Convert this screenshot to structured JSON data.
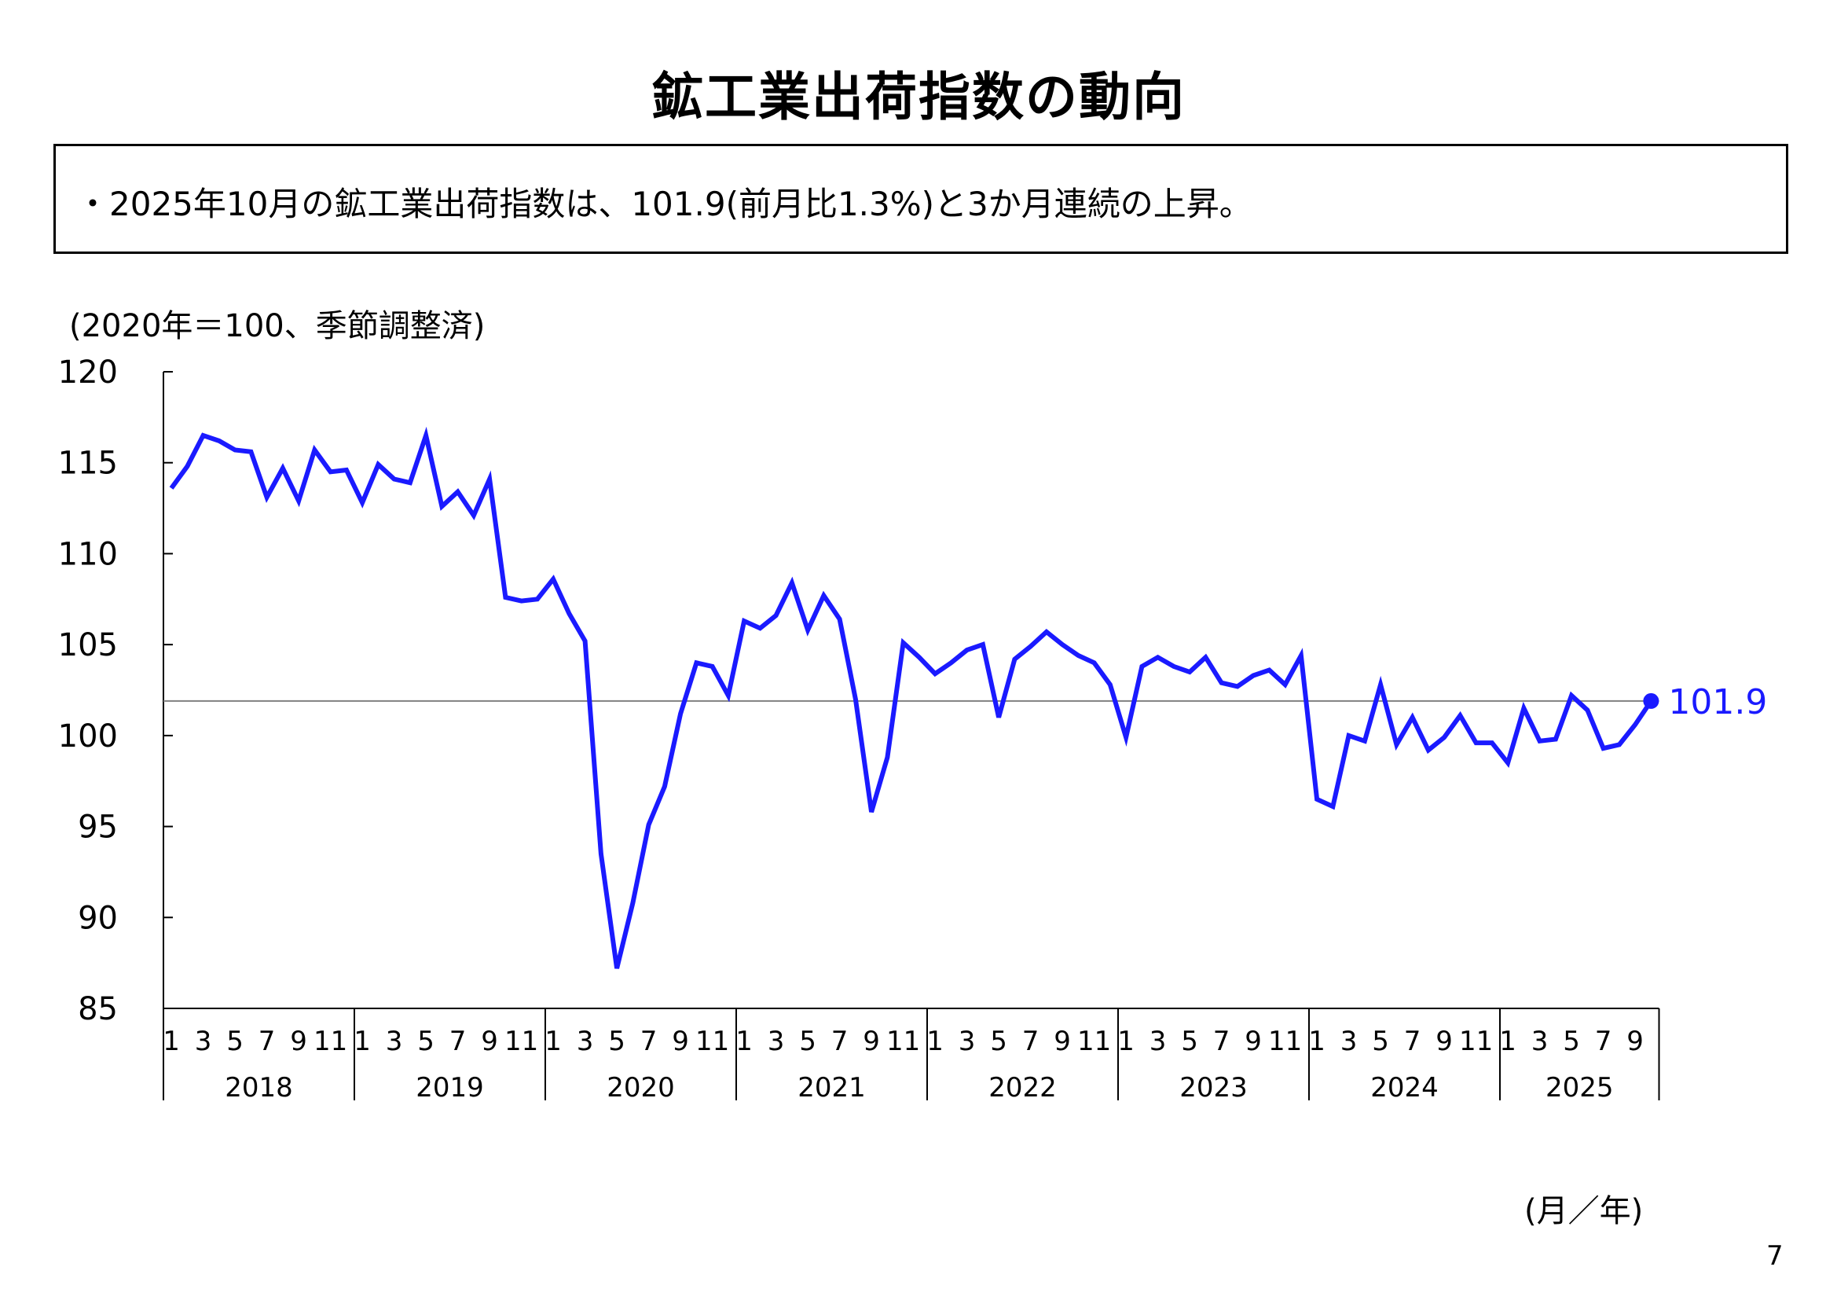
{
  "page": {
    "title": "鉱工業出荷指数の動向",
    "summary": "・2025年10月の鉱工業出荷指数は、101.9(前月比1.3%)と3か月連続の上昇。",
    "unit_note": "(2020年＝100、季節調整済)",
    "x_axis_note": "(月／年)",
    "page_number": "7"
  },
  "chart_data": {
    "type": "line",
    "title": "",
    "ylim": [
      85,
      120
    ],
    "yticks": [
      85,
      90,
      95,
      100,
      105,
      110,
      115,
      120
    ],
    "month_tick_labels": [
      "1",
      "3",
      "5",
      "7",
      "9",
      "11"
    ],
    "years": [
      "2018",
      "2019",
      "2020",
      "2021",
      "2022",
      "2023",
      "2024",
      "2025"
    ],
    "reference_line": 101.9,
    "last_value_label": "101.9",
    "line_color": "#1a1aff",
    "reference_color": "#808080",
    "series": [
      {
        "values": [
          113.6,
          114.8,
          116.5,
          116.2,
          115.7,
          115.6,
          113.1,
          114.7,
          112.9,
          115.7,
          114.5,
          114.6,
          112.8,
          114.9,
          114.1,
          113.9,
          116.5,
          112.6,
          113.4,
          112.1,
          114.1,
          107.6,
          107.4,
          107.5,
          108.6,
          106.7,
          105.2,
          93.5,
          87.2,
          90.8,
          95.1,
          97.2,
          101.2,
          104.0,
          103.8,
          102.2,
          106.3,
          105.9,
          106.6,
          108.4,
          105.8,
          107.7,
          106.4,
          102.0,
          95.8,
          98.8,
          105.1,
          104.3,
          103.4,
          104.0,
          104.7,
          105.0,
          101.0,
          104.2,
          104.9,
          105.7,
          105.0,
          104.4,
          104.0,
          102.8,
          99.9,
          103.8,
          104.3,
          103.8,
          103.5,
          104.3,
          102.9,
          102.7,
          103.3,
          103.6,
          102.8,
          104.4,
          96.5,
          96.1,
          100.0,
          99.7,
          102.8,
          99.5,
          101.0,
          99.2,
          99.9,
          101.1,
          99.6,
          99.6,
          98.5,
          101.5,
          99.7,
          99.8,
          102.2,
          101.4,
          99.3,
          99.5,
          100.6,
          101.9
        ]
      }
    ]
  }
}
